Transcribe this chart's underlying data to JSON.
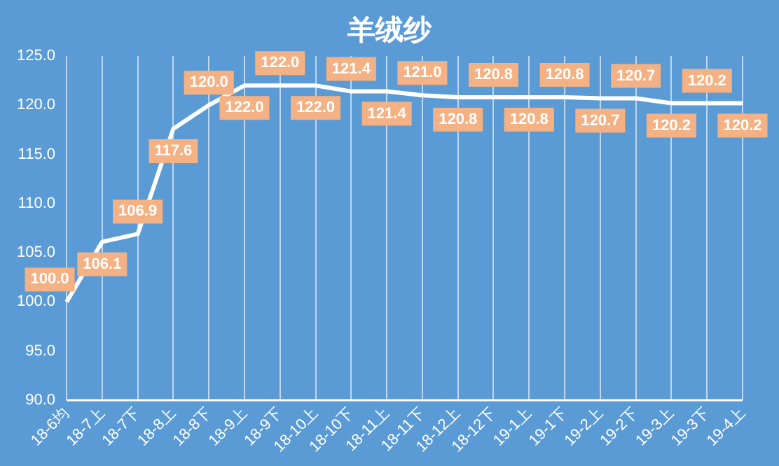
{
  "chart_data": {
    "type": "line",
    "title": "羊绒纱",
    "categories": [
      "18-6均",
      "18-7上",
      "18-7下",
      "18-8上",
      "18-8下",
      "18-9上",
      "18-9下",
      "18-10上",
      "18-10下",
      "18-11上",
      "18-11下",
      "18-12上",
      "18-12下",
      "19-1上",
      "19-1下",
      "19-2上",
      "19-2下",
      "19-3上",
      "19-3下",
      "19-4上"
    ],
    "series": [
      {
        "color": "#ffffff",
        "values": [
          100.0,
          106.1,
          106.9,
          117.6,
          120.0,
          122.0,
          122.0,
          122.0,
          121.4,
          121.4,
          121.0,
          120.8,
          120.8,
          120.8,
          120.8,
          120.7,
          120.7,
          120.2,
          120.2,
          120.2
        ],
        "value_labels": [
          "100.0",
          "106.1",
          "106.9",
          "117.6",
          "120.0",
          "122.0",
          "122.0",
          "122.0",
          "121.4",
          "121.4",
          "121.0",
          "120.8",
          "120.8",
          "120.8",
          "120.8",
          "120.7",
          "120.7",
          "120.2",
          "120.2",
          "120.2"
        ]
      }
    ],
    "ylim": [
      90,
      125
    ],
    "yticks": [
      {
        "value": 90,
        "label": "90.0"
      },
      {
        "value": 95,
        "label": "95.0"
      },
      {
        "value": 100,
        "label": "100.0"
      },
      {
        "value": 105,
        "label": "105.0"
      },
      {
        "value": 110,
        "label": "110.0"
      },
      {
        "value": 115,
        "label": "115.0"
      },
      {
        "value": 120,
        "label": "120.0"
      },
      {
        "value": 125,
        "label": "125.0"
      }
    ],
    "grid": "x",
    "legend": false,
    "marker": "none",
    "line_style": "solid"
  }
}
